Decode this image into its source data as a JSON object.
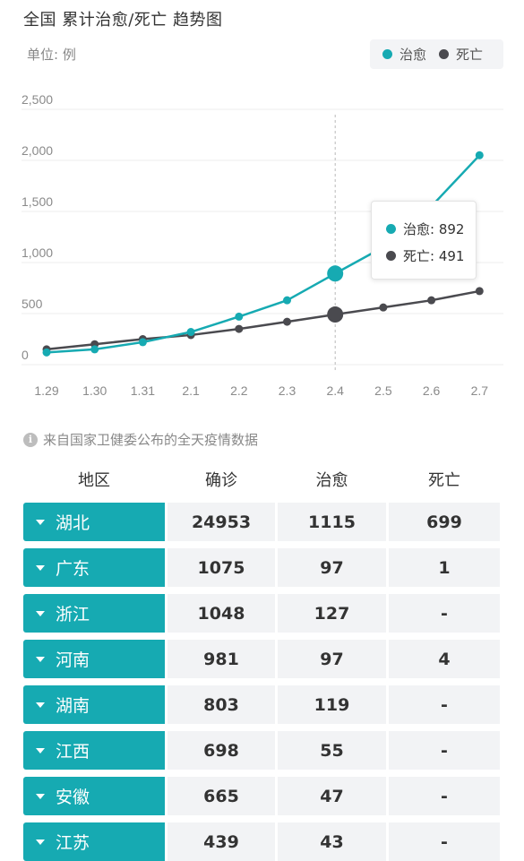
{
  "header": {
    "title": "全国 累计治愈/死亡 趋势图",
    "unit": "单位: 例"
  },
  "legend": [
    {
      "name": "治愈",
      "color": "#16aab2"
    },
    {
      "name": "死亡",
      "color": "#4a4a4f"
    }
  ],
  "chart_data": {
    "type": "line",
    "categories": [
      "1.29",
      "1.30",
      "1.31",
      "2.1",
      "2.2",
      "2.3",
      "2.4",
      "2.5",
      "2.6",
      "2.7"
    ],
    "series": [
      {
        "name": "治愈",
        "color": "#16aab2",
        "values": [
          120,
          150,
          220,
          320,
          470,
          630,
          892,
          1150,
          1550,
          2050
        ]
      },
      {
        "name": "死亡",
        "color": "#4a4a4f",
        "values": [
          150,
          200,
          250,
          290,
          350,
          420,
          491,
          560,
          630,
          720
        ]
      }
    ],
    "y_ticks": [
      "2,500",
      "2,000",
      "1,500",
      "1,000",
      "500",
      "0"
    ],
    "ylim": [
      0,
      2500
    ],
    "grid": true,
    "highlight_index": 6
  },
  "tooltip": {
    "cured": "治愈: 892",
    "dead": "死亡: 491"
  },
  "source": {
    "icon": "info-icon",
    "text": "来自国家卫健委公布的全天疫情数据"
  },
  "table": {
    "headers": [
      "地区",
      "确诊",
      "治愈",
      "死亡"
    ],
    "rows": [
      {
        "region": "湖北",
        "confirmed": "24953",
        "cured": "1115",
        "dead": "699"
      },
      {
        "region": "广东",
        "confirmed": "1075",
        "cured": "97",
        "dead": "1"
      },
      {
        "region": "浙江",
        "confirmed": "1048",
        "cured": "127",
        "dead": "-"
      },
      {
        "region": "河南",
        "confirmed": "981",
        "cured": "97",
        "dead": "4"
      },
      {
        "region": "湖南",
        "confirmed": "803",
        "cured": "119",
        "dead": "-"
      },
      {
        "region": "江西",
        "confirmed": "698",
        "cured": "55",
        "dead": "-"
      },
      {
        "region": "安徽",
        "confirmed": "665",
        "cured": "47",
        "dead": "-"
      },
      {
        "region": "江苏",
        "confirmed": "439",
        "cured": "43",
        "dead": "-"
      }
    ]
  }
}
